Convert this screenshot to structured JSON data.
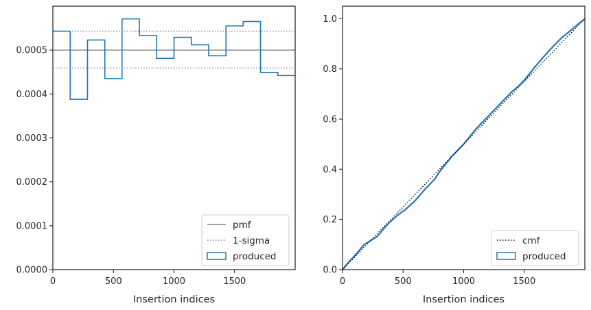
{
  "chart_data": [
    {
      "type": "histogram-step",
      "xlabel": "Insertion indices",
      "ylabel": "",
      "xlim": [
        0,
        2000
      ],
      "ylim": [
        0,
        0.0006
      ],
      "x_ticks": [
        0,
        500,
        1000,
        1500
      ],
      "x_tick_labels": [
        "0",
        "500",
        "1000",
        "1500"
      ],
      "y_ticks": [
        0,
        0.0001,
        0.0002,
        0.0003,
        0.0004,
        0.0005
      ],
      "y_tick_labels": [
        "0.0000",
        "0.0001",
        "0.0002",
        "0.0003",
        "0.0004",
        "0.0005"
      ],
      "pmf": 0.0005,
      "sigma_band": [
        0.000459,
        0.000543
      ],
      "bin_edges": [
        0,
        143,
        286,
        429,
        571,
        714,
        857,
        1000,
        1143,
        1286,
        1429,
        1571,
        1714,
        1857,
        2000
      ],
      "produced": [
        0.000543,
        0.000388,
        0.000523,
        0.000435,
        0.000571,
        0.000533,
        0.000481,
        0.000529,
        0.000512,
        0.000487,
        0.000555,
        0.000565,
        0.000449,
        0.000442
      ],
      "legend": {
        "position": "lower right",
        "entries": [
          {
            "label": "pmf",
            "style": "solid",
            "color": "#808080"
          },
          {
            "label": "1-sigma",
            "style": "dotted",
            "color": "#808080"
          },
          {
            "label": "produced",
            "style": "box",
            "color": "#1f77b4"
          }
        ]
      }
    },
    {
      "type": "line",
      "xlabel": "Insertion indices",
      "ylabel": "",
      "xlim": [
        0,
        2000
      ],
      "ylim": [
        0,
        1.05
      ],
      "x_ticks": [
        0,
        500,
        1000,
        1500
      ],
      "x_tick_labels": [
        "0",
        "500",
        "1000",
        "1500"
      ],
      "y_ticks": [
        0,
        0.2,
        0.4,
        0.6,
        0.8,
        1.0
      ],
      "y_tick_labels": [
        "0.0",
        "0.2",
        "0.4",
        "0.6",
        "0.8",
        "1.0"
      ],
      "cmf": {
        "x": [
          0,
          2000
        ],
        "y": [
          0,
          1.0
        ]
      },
      "produced": {
        "x": [
          0,
          50,
          100,
          180,
          280,
          300,
          380,
          450,
          520,
          600,
          680,
          760,
          800,
          900,
          1000,
          1050,
          1100,
          1200,
          1300,
          1400,
          1450,
          1500,
          1600,
          1700,
          1800,
          1900,
          2000
        ],
        "y": [
          0,
          0.03,
          0.055,
          0.1,
          0.13,
          0.14,
          0.185,
          0.215,
          0.24,
          0.275,
          0.32,
          0.36,
          0.39,
          0.45,
          0.5,
          0.53,
          0.56,
          0.61,
          0.66,
          0.71,
          0.73,
          0.755,
          0.815,
          0.87,
          0.92,
          0.96,
          1.0
        ]
      },
      "legend": {
        "position": "lower right",
        "entries": [
          {
            "label": "cmf",
            "style": "dotted",
            "color": "#000000"
          },
          {
            "label": "produced",
            "style": "box",
            "color": "#1f77b4"
          }
        ]
      }
    }
  ]
}
